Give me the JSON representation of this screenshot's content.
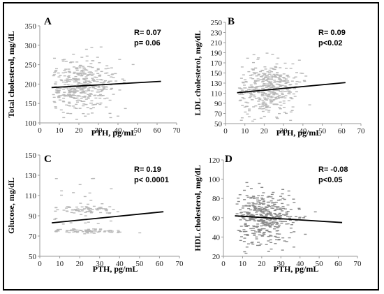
{
  "chart_data": [
    {
      "type": "scatter",
      "panel": "A",
      "xlabel": "PTH, pg/mL",
      "ylabel": "Total cholesterol, mg/dL",
      "xlim": [
        0,
        70
      ],
      "ylim": [
        100,
        350
      ],
      "xticks": [
        0,
        10,
        20,
        30,
        40,
        50,
        60,
        70
      ],
      "yticks": [
        100,
        150,
        200,
        250,
        300,
        350
      ],
      "stats": [
        "R= 0.07",
        "p= 0.06"
      ],
      "trendline": {
        "x": [
          6,
          62
        ],
        "y": [
          191,
          207
        ]
      },
      "point_color": "#b8b8b8"
    },
    {
      "type": "scatter",
      "panel": "B",
      "xlabel": "PTH, pg/mL",
      "ylabel": "LDL cholesterol, mg/dL",
      "xlim": [
        0,
        70
      ],
      "ylim": [
        50,
        250
      ],
      "xticks": [
        0,
        10,
        20,
        30,
        40,
        50,
        60,
        70
      ],
      "yticks": [
        50,
        70,
        90,
        110,
        130,
        150,
        170,
        190,
        210,
        230,
        250
      ],
      "stats": [
        "R= 0.09",
        "p<0.02"
      ],
      "trendline": {
        "x": [
          6,
          62
        ],
        "y": [
          111,
          131
        ]
      },
      "point_color": "#b8b8b8"
    },
    {
      "type": "scatter",
      "panel": "C",
      "xlabel": "PTH, pg/mL",
      "ylabel": "Glucose, mg/dL",
      "xlim": [
        0,
        70
      ],
      "ylim": [
        50,
        150
      ],
      "xticks": [
        0,
        10,
        20,
        30,
        40,
        50,
        60,
        70
      ],
      "yticks": [
        50,
        70,
        90,
        110,
        130,
        150
      ],
      "stats": [
        "R= 0.19",
        "p< 0.0001"
      ],
      "trendline": {
        "x": [
          6,
          62
        ],
        "y": [
          83,
          94
        ]
      },
      "point_color": "#b8b8b8"
    },
    {
      "type": "scatter",
      "panel": "D",
      "xlabel": "PTH, pg/mL",
      "ylabel": "HDL cholesterol, mg/dL",
      "xlim": [
        0,
        70
      ],
      "ylim": [
        20,
        120
      ],
      "xticks": [
        0,
        10,
        20,
        30,
        40,
        50,
        60,
        70
      ],
      "yticks": [
        20,
        40,
        60,
        80,
        100,
        120
      ],
      "stats": [
        "R= -0.08",
        "p<0.05"
      ],
      "trendline": {
        "x": [
          6,
          62
        ],
        "y": [
          62,
          55
        ]
      },
      "point_color": "#8a8a8a"
    }
  ]
}
